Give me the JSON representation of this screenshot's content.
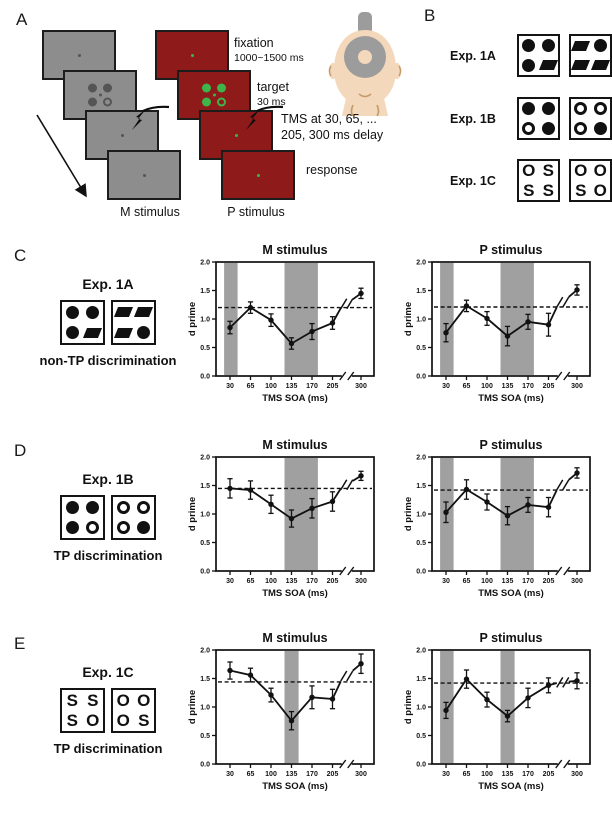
{
  "figure": {
    "panel_a": {
      "label": "A",
      "m_stream_label": "M stimulus",
      "p_stream_label": "P stimulus",
      "annotations": [
        {
          "title": "fixation",
          "sub": "1000~1500 ms"
        },
        {
          "title": "target",
          "sub": "30 ms"
        },
        {
          "title": "TMS at 30, 65, ...",
          "sub": "205, 300 ms delay"
        },
        {
          "title": "response",
          "sub": ""
        }
      ],
      "colors": {
        "gray_screen": "#8d8d8d",
        "red_screen": "#8e1a1a",
        "screen_border": "#1c1c1c",
        "gray_target_dot": "#555555",
        "green_target_dot": "#3db54a",
        "skin": "#f3d8bb",
        "coil_gray": "#9c9c9c"
      }
    },
    "panel_b": {
      "label": "B",
      "rows": [
        {
          "label": "Exp. 1A",
          "boxes": [
            [
              "fc",
              "fc",
              "fc",
              "pg"
            ],
            [
              "pg",
              "fc",
              "pg",
              "pg"
            ]
          ]
        },
        {
          "label": "Exp. 1B",
          "boxes": [
            [
              "fc",
              "fc",
              "oc",
              "fc"
            ],
            [
              "oc",
              "oc",
              "oc",
              "fc"
            ]
          ]
        },
        {
          "label": "Exp. 1C",
          "boxes": [
            [
              "O",
              "S",
              "S",
              "S"
            ],
            [
              "O",
              "O",
              "S",
              "O"
            ]
          ]
        }
      ]
    },
    "panels": [
      {
        "label": "C",
        "exp_title": "Exp. 1A",
        "caption": "non-TP discrimination",
        "boxes": [
          [
            "fc",
            "fc",
            "fc",
            "pg"
          ],
          [
            "pg",
            "pg",
            "pg",
            "fc"
          ]
        ]
      },
      {
        "label": "D",
        "exp_title": "Exp. 1B",
        "caption": "TP discrimination",
        "boxes": [
          [
            "fc",
            "fc",
            "fc",
            "oc"
          ],
          [
            "oc",
            "oc",
            "oc",
            "fc"
          ]
        ]
      },
      {
        "label": "E",
        "exp_title": "Exp. 1C",
        "caption": "TP discrimination",
        "boxes": [
          [
            "S",
            "S",
            "S",
            "O"
          ],
          [
            "O",
            "O",
            "O",
            "S"
          ]
        ]
      }
    ]
  },
  "chart_data": [
    {
      "panel": "C",
      "type": "line",
      "title": "M stimulus",
      "xlabel": "TMS SOA (ms)",
      "ylabel": "d prime",
      "x_ticks": [
        30,
        65,
        100,
        135,
        170,
        205,
        300
      ],
      "x_axis_break_between": [
        205,
        300
      ],
      "ylim": [
        0,
        2
      ],
      "y_ticks": [
        0,
        0.5,
        1,
        1.5,
        2
      ],
      "values": [
        0.85,
        1.2,
        0.98,
        0.57,
        0.78,
        0.93,
        1.45
      ],
      "errors": [
        0.11,
        0.1,
        0.11,
        0.1,
        0.14,
        0.11,
        0.09
      ],
      "baseline": 1.2,
      "shaded_bands_ms": [
        [
          20,
          43
        ],
        [
          123,
          180
        ]
      ],
      "band_color": "#a0a0a0"
    },
    {
      "panel": "C",
      "type": "line",
      "title": "P stimulus",
      "xlabel": "TMS SOA (ms)",
      "ylabel": "d prime",
      "x_ticks": [
        30,
        65,
        100,
        135,
        170,
        205,
        300
      ],
      "x_axis_break_between": [
        205,
        300
      ],
      "ylim": [
        0,
        2
      ],
      "y_ticks": [
        0,
        0.5,
        1,
        1.5,
        2
      ],
      "values": [
        0.76,
        1.23,
        1.01,
        0.7,
        0.95,
        0.9,
        1.51
      ],
      "errors": [
        0.16,
        0.1,
        0.12,
        0.17,
        0.13,
        0.2,
        0.09
      ],
      "baseline": 1.21,
      "shaded_bands_ms": [
        [
          20,
          43
        ],
        [
          123,
          180
        ]
      ],
      "band_color": "#a0a0a0"
    },
    {
      "panel": "D",
      "type": "line",
      "title": "M stimulus",
      "xlabel": "TMS SOA (ms)",
      "ylabel": "d prime",
      "x_ticks": [
        30,
        65,
        100,
        135,
        170,
        205,
        300
      ],
      "x_axis_break_between": [
        205,
        300
      ],
      "ylim": [
        0,
        2
      ],
      "y_ticks": [
        0,
        0.5,
        1,
        1.5,
        2
      ],
      "values": [
        1.45,
        1.42,
        1.17,
        0.92,
        1.1,
        1.22,
        1.67
      ],
      "errors": [
        0.17,
        0.16,
        0.16,
        0.15,
        0.17,
        0.17,
        0.08
      ],
      "baseline": 1.45,
      "shaded_bands_ms": [
        [
          123,
          180
        ]
      ],
      "band_color": "#a0a0a0"
    },
    {
      "panel": "D",
      "type": "line",
      "title": "P stimulus",
      "xlabel": "TMS SOA (ms)",
      "ylabel": "d prime",
      "x_ticks": [
        30,
        65,
        100,
        135,
        170,
        205,
        300
      ],
      "x_axis_break_between": [
        205,
        300
      ],
      "ylim": [
        0,
        2
      ],
      "y_ticks": [
        0,
        0.5,
        1,
        1.5,
        2
      ],
      "values": [
        1.03,
        1.43,
        1.21,
        0.97,
        1.16,
        1.12,
        1.72
      ],
      "errors": [
        0.18,
        0.17,
        0.14,
        0.16,
        0.13,
        0.17,
        0.09
      ],
      "baseline": 1.42,
      "shaded_bands_ms": [
        [
          20,
          43
        ],
        [
          123,
          180
        ]
      ],
      "band_color": "#a0a0a0"
    },
    {
      "panel": "E",
      "type": "line",
      "title": "M stimulus",
      "xlabel": "TMS SOA (ms)",
      "ylabel": "d prime",
      "x_ticks": [
        30,
        65,
        100,
        135,
        170,
        205,
        300
      ],
      "x_axis_break_between": [
        205,
        300
      ],
      "ylim": [
        0,
        2
      ],
      "y_ticks": [
        0,
        0.5,
        1,
        1.5,
        2
      ],
      "values": [
        1.64,
        1.56,
        1.21,
        0.76,
        1.17,
        1.14,
        1.76
      ],
      "errors": [
        0.15,
        0.12,
        0.12,
        0.16,
        0.2,
        0.17,
        0.17
      ],
      "baseline": 1.44,
      "shaded_bands_ms": [
        [
          123,
          147
        ]
      ],
      "band_color": "#a0a0a0"
    },
    {
      "panel": "E",
      "type": "line",
      "title": "P stimulus",
      "xlabel": "TMS SOA (ms)",
      "ylabel": "d prime",
      "x_ticks": [
        30,
        65,
        100,
        135,
        170,
        205,
        300
      ],
      "x_axis_break_between": [
        205,
        300
      ],
      "ylim": [
        0,
        2
      ],
      "y_ticks": [
        0,
        0.5,
        1,
        1.5,
        2
      ],
      "values": [
        0.94,
        1.49,
        1.13,
        0.84,
        1.16,
        1.38,
        1.46
      ],
      "errors": [
        0.14,
        0.16,
        0.13,
        0.1,
        0.17,
        0.13,
        0.14
      ],
      "baseline": 1.42,
      "shaded_bands_ms": [
        [
          20,
          43
        ],
        [
          123,
          147
        ]
      ],
      "band_color": "#a0a0a0"
    }
  ]
}
